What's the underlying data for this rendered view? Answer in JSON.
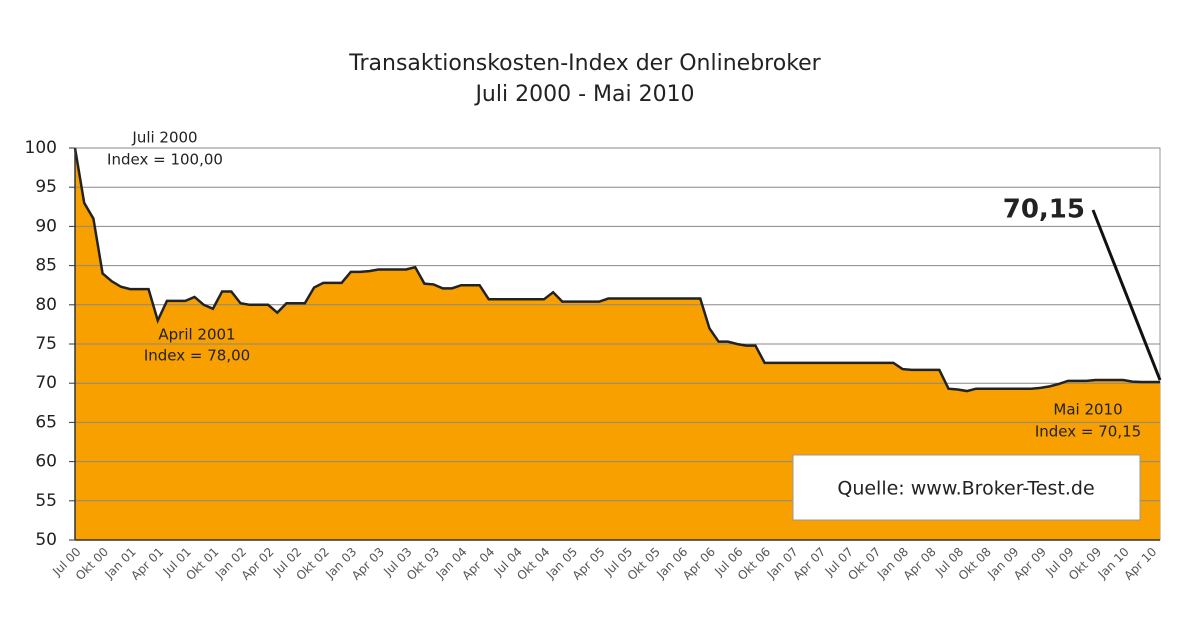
{
  "chart_data": {
    "type": "area",
    "title": "Transaktionskosten-Index der Onlinebroker",
    "subtitle": "Juli 2000 - Mai 2010",
    "categories": [
      "Jul 00",
      null,
      null,
      "Okt 00",
      null,
      null,
      "Jan 01",
      null,
      null,
      "Apr 01",
      null,
      null,
      "Jul 01",
      null,
      null,
      "Okt 01",
      null,
      null,
      "Jan 02",
      null,
      null,
      "Apr 02",
      null,
      null,
      "Jul 02",
      null,
      null,
      "Okt 02",
      null,
      null,
      "Jan 03",
      null,
      null,
      "Apr 03",
      null,
      null,
      "Jul 03",
      null,
      null,
      "Okt 03",
      null,
      null,
      "Jan 04",
      null,
      null,
      "Apr 04",
      null,
      null,
      "Jul 04",
      null,
      null,
      "Okt 04",
      null,
      null,
      "Jan 05",
      null,
      null,
      "Apr 05",
      null,
      null,
      "Jul 05",
      null,
      null,
      "Okt 05",
      null,
      null,
      "Jan 06",
      null,
      null,
      "Apr 06",
      null,
      null,
      "Jul 06",
      null,
      null,
      "Okt 06",
      null,
      null,
      "Jan 07",
      null,
      null,
      "Apr 07",
      null,
      null,
      "Jul 07",
      null,
      null,
      "Okt 07",
      null,
      null,
      "Jan 08",
      null,
      null,
      "Apr 08",
      null,
      null,
      "Jul 08",
      null,
      null,
      "Okt 08",
      null,
      null,
      "Jan 09",
      null,
      null,
      "Apr 09",
      null,
      null,
      "Jul 09",
      null,
      null,
      "Okt 09",
      null,
      null,
      "Jan 10",
      null,
      null,
      "Apr 10",
      null
    ],
    "values": [
      100,
      93,
      91,
      84,
      83,
      82.3,
      82,
      82,
      82,
      78,
      80.5,
      80.5,
      80.5,
      81,
      80,
      79.5,
      81.7,
      81.7,
      80.2,
      80,
      80,
      80,
      79,
      80.2,
      80.2,
      80.2,
      82.2,
      82.8,
      82.8,
      82.8,
      84.2,
      84.2,
      84.3,
      84.5,
      84.5,
      84.5,
      84.5,
      84.8,
      82.7,
      82.6,
      82.1,
      82.1,
      82.5,
      82.5,
      82.5,
      80.7,
      80.7,
      80.7,
      80.7,
      80.7,
      80.7,
      80.7,
      81.6,
      80.4,
      80.4,
      80.4,
      80.4,
      80.4,
      80.8,
      80.8,
      80.8,
      80.8,
      80.8,
      80.8,
      80.8,
      80.8,
      80.8,
      80.8,
      80.8,
      77,
      75.3,
      75.3,
      75,
      74.8,
      74.8,
      72.6,
      72.6,
      72.6,
      72.6,
      72.6,
      72.6,
      72.6,
      72.6,
      72.6,
      72.6,
      72.6,
      72.6,
      72.6,
      72.6,
      72.6,
      71.8,
      71.7,
      71.7,
      71.7,
      71.7,
      69.3,
      69.2,
      69,
      69.3,
      69.3,
      69.3,
      69.3,
      69.3,
      69.3,
      69.3,
      69.4,
      69.6,
      69.9,
      70.3,
      70.3,
      70.3,
      70.4,
      70.4,
      70.4,
      70.4,
      70.2,
      70.15,
      70.15,
      70.15
    ],
    "color": "#f7a000",
    "line_color": "#222222",
    "ylim": [
      50,
      100
    ],
    "yticks": [
      50,
      55,
      60,
      65,
      70,
      75,
      80,
      85,
      90,
      95,
      100
    ],
    "grid": true,
    "annotations": [
      "Juli 2000",
      "Index = 100,00",
      "April 2001",
      "Index = 78,00",
      "Mai 2010",
      "Index = 70,15",
      "70,15"
    ],
    "source": "Quelle: www.Broker-Test.de"
  }
}
